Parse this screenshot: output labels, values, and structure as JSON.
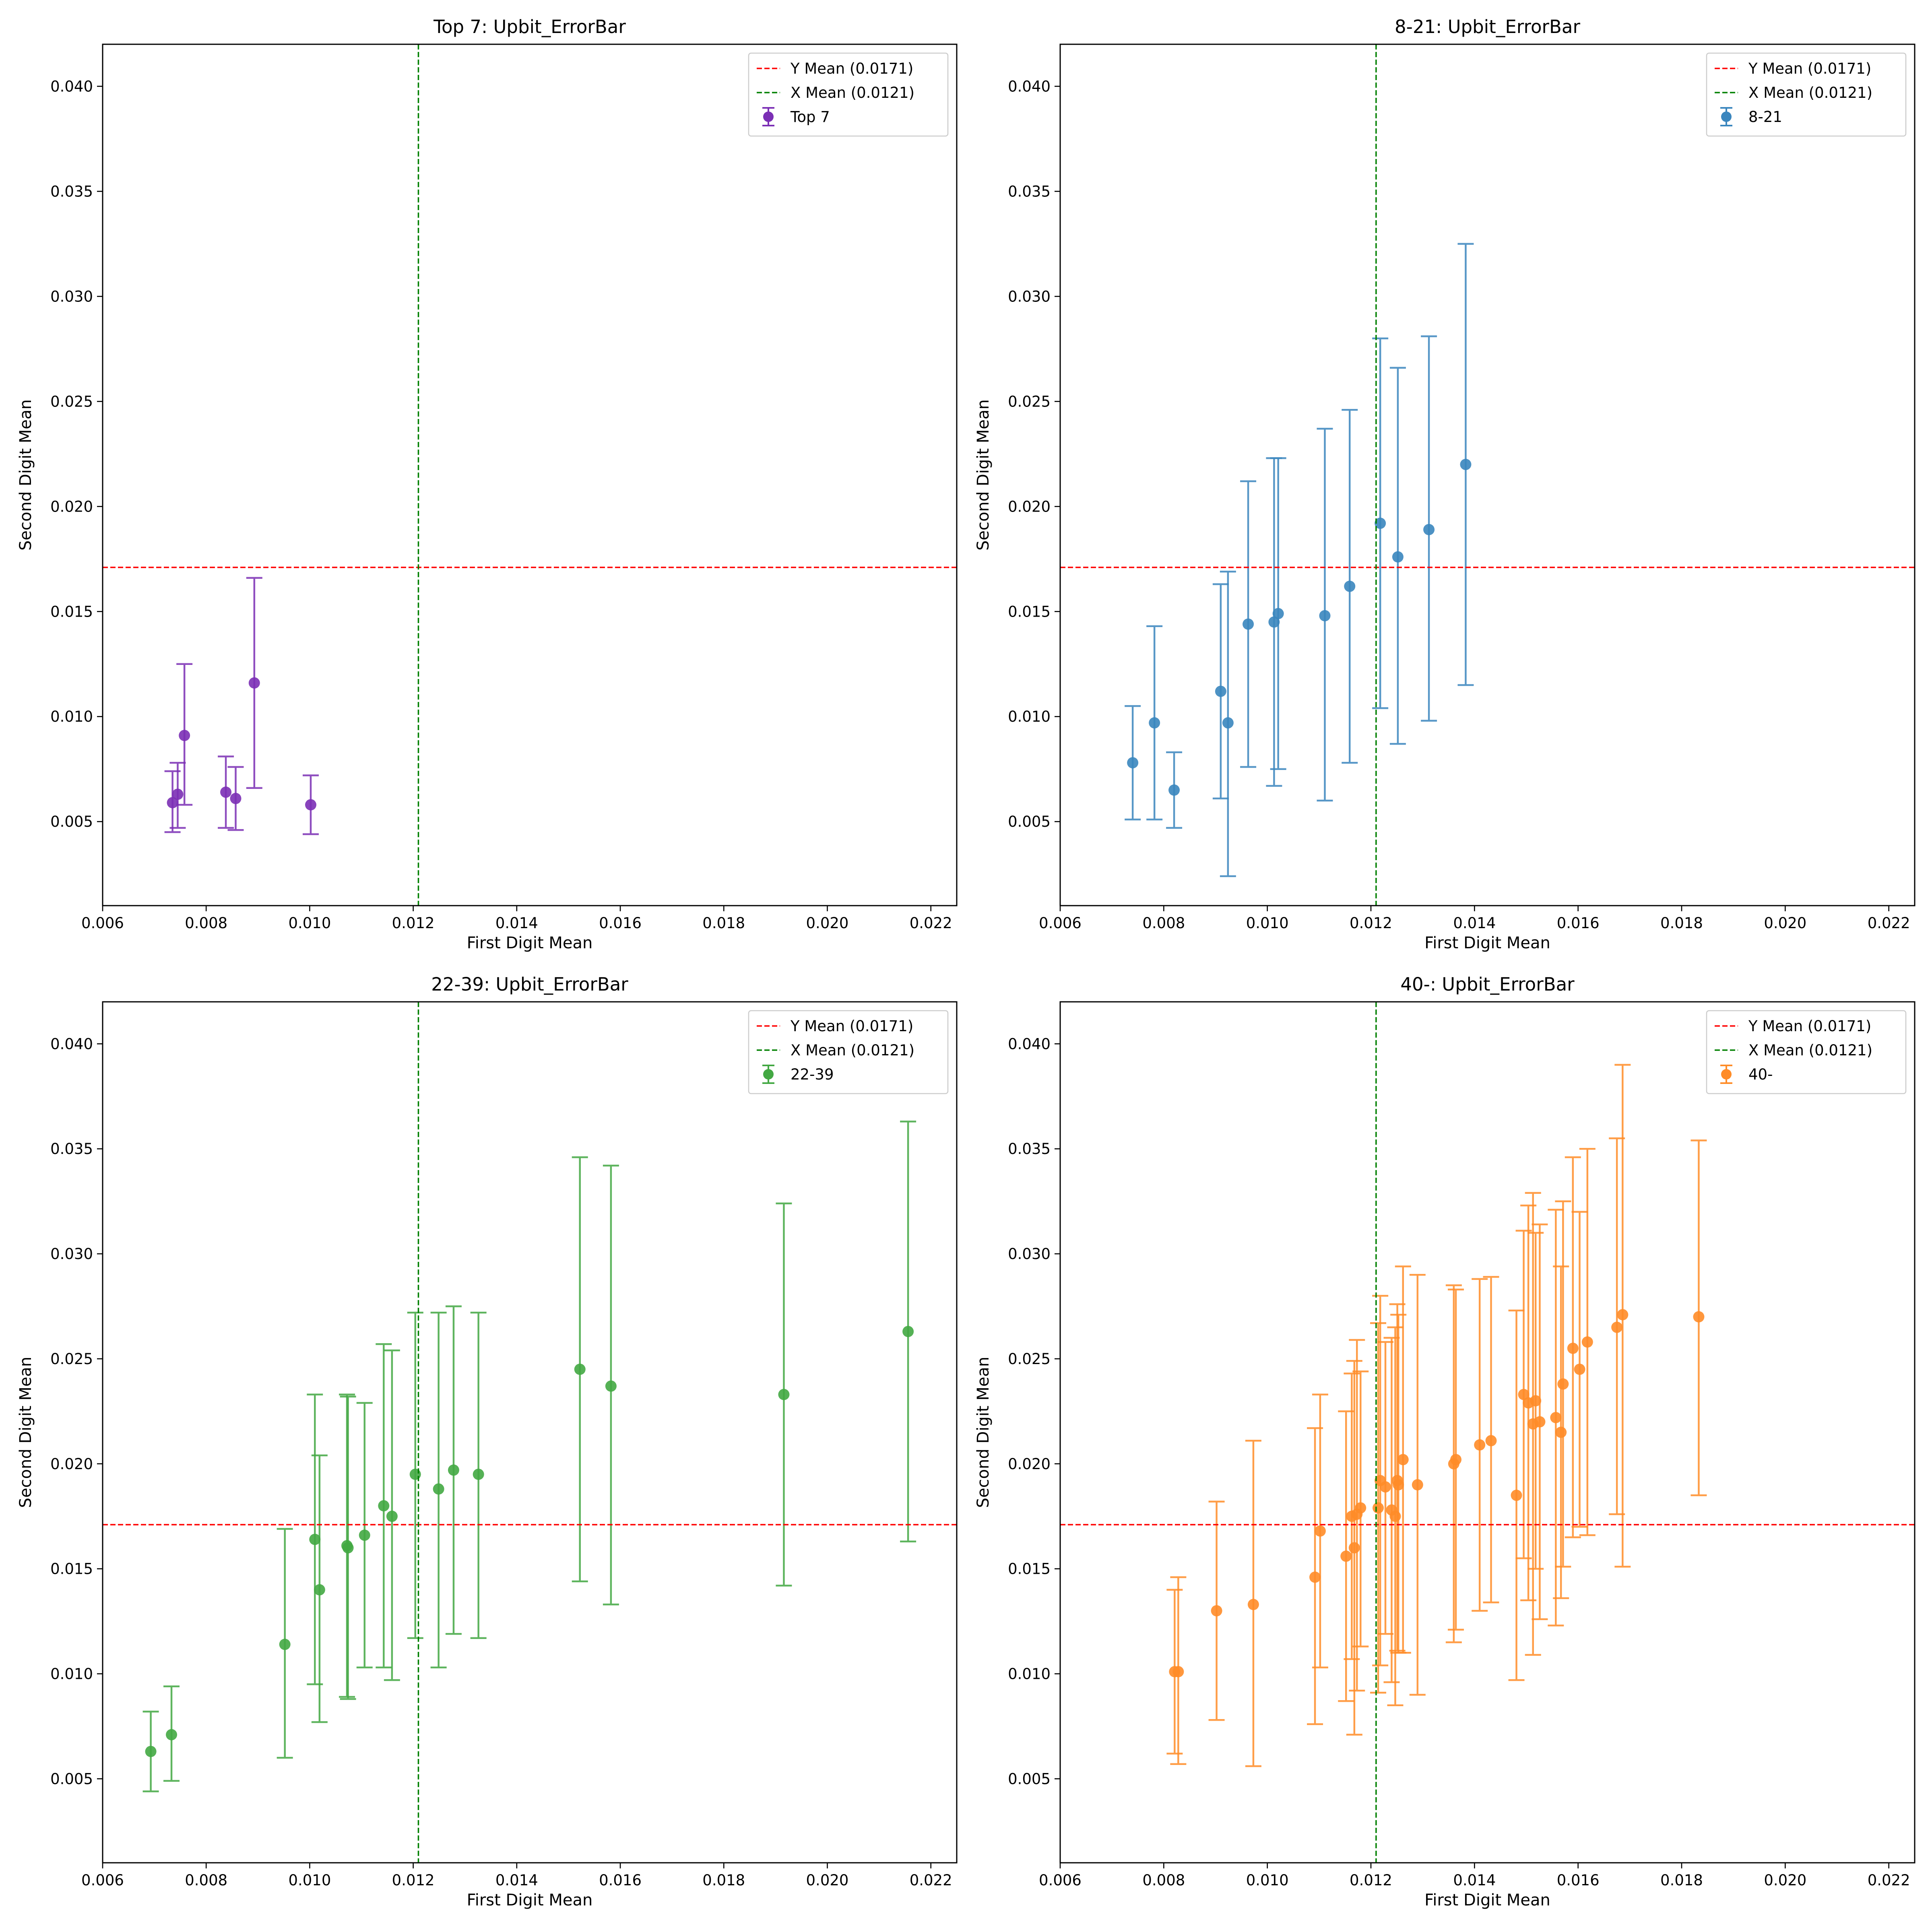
{
  "colors": {
    "y_mean_line": "#ff0000",
    "x_mean_line": "#008000",
    "panel_colors": [
      "#7B2FB5",
      "#3A86BE",
      "#43A843",
      "#FF8C28"
    ]
  },
  "chart_data": [
    {
      "type": "scatter",
      "error_bars": true,
      "title": "Top 7: Upbit_ErrorBar",
      "xlabel": "First Digit Mean",
      "ylabel": "Second Digit Mean",
      "xlim": [
        0.006,
        0.0225
      ],
      "ylim": [
        0.001,
        0.042
      ],
      "x_ticks": [
        "0.006",
        "0.008",
        "0.010",
        "0.012",
        "0.014",
        "0.016",
        "0.018",
        "0.020",
        "0.022"
      ],
      "y_ticks": [
        "0.005",
        "0.010",
        "0.015",
        "0.020",
        "0.025",
        "0.030",
        "0.035",
        "0.040"
      ],
      "legend_position": "top-right",
      "reference_lines": [
        {
          "orientation": "horizontal",
          "value": 0.0171,
          "label": "Y Mean (0.0171)",
          "color": "#ff0000",
          "style": "dashed"
        },
        {
          "orientation": "vertical",
          "value": 0.0121,
          "label": "X Mean (0.0121)",
          "color": "#008000",
          "style": "dashed"
        }
      ],
      "series": [
        {
          "name": "Top 7",
          "color": "#7B2FB5",
          "points": [
            {
              "x": 0.00735,
              "y": 0.0059,
              "low": 0.0045,
              "high": 0.0074
            },
            {
              "x": 0.00745,
              "y": 0.0063,
              "low": 0.0047,
              "high": 0.0078
            },
            {
              "x": 0.00758,
              "y": 0.0091,
              "low": 0.0058,
              "high": 0.0125
            },
            {
              "x": 0.00838,
              "y": 0.0064,
              "low": 0.0047,
              "high": 0.0081
            },
            {
              "x": 0.00857,
              "y": 0.0061,
              "low": 0.0046,
              "high": 0.0076
            },
            {
              "x": 0.00893,
              "y": 0.0116,
              "low": 0.0066,
              "high": 0.0166
            },
            {
              "x": 0.01002,
              "y": 0.0058,
              "low": 0.0044,
              "high": 0.0072
            }
          ]
        }
      ]
    },
    {
      "type": "scatter",
      "error_bars": true,
      "title": "8-21: Upbit_ErrorBar",
      "xlabel": "First Digit Mean",
      "ylabel": "Second Digit Mean",
      "xlim": [
        0.006,
        0.0225
      ],
      "ylim": [
        0.001,
        0.042
      ],
      "x_ticks": [
        "0.006",
        "0.008",
        "0.010",
        "0.012",
        "0.014",
        "0.016",
        "0.018",
        "0.020",
        "0.022"
      ],
      "y_ticks": [
        "0.005",
        "0.010",
        "0.015",
        "0.020",
        "0.025",
        "0.030",
        "0.035",
        "0.040"
      ],
      "legend_position": "top-right",
      "reference_lines": [
        {
          "orientation": "horizontal",
          "value": 0.0171,
          "label": "Y Mean (0.0171)",
          "color": "#ff0000",
          "style": "dashed"
        },
        {
          "orientation": "vertical",
          "value": 0.0121,
          "label": "X Mean (0.0121)",
          "color": "#008000",
          "style": "dashed"
        }
      ],
      "series": [
        {
          "name": "8-21",
          "color": "#3A86BE",
          "points": [
            {
              "x": 0.0074,
              "y": 0.0078,
              "low": 0.0051,
              "high": 0.0105
            },
            {
              "x": 0.00782,
              "y": 0.0097,
              "low": 0.0051,
              "high": 0.0143
            },
            {
              "x": 0.0082,
              "y": 0.0065,
              "low": 0.0047,
              "high": 0.0083
            },
            {
              "x": 0.0091,
              "y": 0.0112,
              "low": 0.0061,
              "high": 0.0163
            },
            {
              "x": 0.00924,
              "y": 0.0097,
              "low": 0.0024,
              "high": 0.0169
            },
            {
              "x": 0.00963,
              "y": 0.0144,
              "low": 0.0076,
              "high": 0.0212
            },
            {
              "x": 0.01013,
              "y": 0.0145,
              "low": 0.0067,
              "high": 0.0223
            },
            {
              "x": 0.01021,
              "y": 0.0149,
              "low": 0.0075,
              "high": 0.0223
            },
            {
              "x": 0.01111,
              "y": 0.0148,
              "low": 0.006,
              "high": 0.0237
            },
            {
              "x": 0.01159,
              "y": 0.0162,
              "low": 0.0078,
              "high": 0.0246
            },
            {
              "x": 0.01218,
              "y": 0.0192,
              "low": 0.0104,
              "high": 0.028
            },
            {
              "x": 0.01252,
              "y": 0.0176,
              "low": 0.0087,
              "high": 0.0266
            },
            {
              "x": 0.01312,
              "y": 0.0189,
              "low": 0.0098,
              "high": 0.0281
            },
            {
              "x": 0.01383,
              "y": 0.022,
              "low": 0.0115,
              "high": 0.0325
            }
          ]
        }
      ]
    },
    {
      "type": "scatter",
      "error_bars": true,
      "title": "22-39: Upbit_ErrorBar",
      "xlabel": "First Digit Mean",
      "ylabel": "Second Digit Mean",
      "xlim": [
        0.006,
        0.0225
      ],
      "ylim": [
        0.001,
        0.042
      ],
      "x_ticks": [
        "0.006",
        "0.008",
        "0.010",
        "0.012",
        "0.014",
        "0.016",
        "0.018",
        "0.020",
        "0.022"
      ],
      "y_ticks": [
        "0.005",
        "0.010",
        "0.015",
        "0.020",
        "0.025",
        "0.030",
        "0.035",
        "0.040"
      ],
      "legend_position": "top-right",
      "reference_lines": [
        {
          "orientation": "horizontal",
          "value": 0.0171,
          "label": "Y Mean (0.0171)",
          "color": "#ff0000",
          "style": "dashed"
        },
        {
          "orientation": "vertical",
          "value": 0.0121,
          "label": "X Mean (0.0121)",
          "color": "#008000",
          "style": "dashed"
        }
      ],
      "series": [
        {
          "name": "22-39",
          "color": "#43A843",
          "points": [
            {
              "x": 0.00693,
              "y": 0.0063,
              "low": 0.0044,
              "high": 0.0082
            },
            {
              "x": 0.00733,
              "y": 0.0071,
              "low": 0.0049,
              "high": 0.0094
            },
            {
              "x": 0.00952,
              "y": 0.0114,
              "low": 0.006,
              "high": 0.0169
            },
            {
              "x": 0.0101,
              "y": 0.0164,
              "low": 0.0095,
              "high": 0.0233
            },
            {
              "x": 0.01019,
              "y": 0.014,
              "low": 0.0077,
              "high": 0.0204
            },
            {
              "x": 0.01072,
              "y": 0.0161,
              "low": 0.0089,
              "high": 0.0233
            },
            {
              "x": 0.01074,
              "y": 0.016,
              "low": 0.0088,
              "high": 0.0232
            },
            {
              "x": 0.01106,
              "y": 0.0166,
              "low": 0.0103,
              "high": 0.0229
            },
            {
              "x": 0.01143,
              "y": 0.018,
              "low": 0.0103,
              "high": 0.0257
            },
            {
              "x": 0.01159,
              "y": 0.0175,
              "low": 0.0097,
              "high": 0.0254
            },
            {
              "x": 0.01204,
              "y": 0.0195,
              "low": 0.0117,
              "high": 0.0272
            },
            {
              "x": 0.01249,
              "y": 0.0188,
              "low": 0.0103,
              "high": 0.0272
            },
            {
              "x": 0.01278,
              "y": 0.0197,
              "low": 0.0119,
              "high": 0.0275
            },
            {
              "x": 0.01326,
              "y": 0.0195,
              "low": 0.0117,
              "high": 0.0272
            },
            {
              "x": 0.01522,
              "y": 0.0245,
              "low": 0.0144,
              "high": 0.0346
            },
            {
              "x": 0.01582,
              "y": 0.0237,
              "low": 0.0133,
              "high": 0.0342
            },
            {
              "x": 0.01916,
              "y": 0.0233,
              "low": 0.0142,
              "high": 0.0324
            },
            {
              "x": 0.02156,
              "y": 0.0263,
              "low": 0.0163,
              "high": 0.0363
            }
          ]
        }
      ]
    },
    {
      "type": "scatter",
      "error_bars": true,
      "title": "40-: Upbit_ErrorBar",
      "xlabel": "First Digit Mean",
      "ylabel": "Second Digit Mean",
      "xlim": [
        0.006,
        0.0225
      ],
      "ylim": [
        0.001,
        0.042
      ],
      "x_ticks": [
        "0.006",
        "0.008",
        "0.010",
        "0.012",
        "0.014",
        "0.016",
        "0.018",
        "0.020",
        "0.022"
      ],
      "y_ticks": [
        "0.005",
        "0.010",
        "0.015",
        "0.020",
        "0.025",
        "0.030",
        "0.035",
        "0.040"
      ],
      "legend_position": "top-right",
      "reference_lines": [
        {
          "orientation": "horizontal",
          "value": 0.0171,
          "label": "Y Mean (0.0171)",
          "color": "#ff0000",
          "style": "dashed"
        },
        {
          "orientation": "vertical",
          "value": 0.0121,
          "label": "X Mean (0.0121)",
          "color": "#008000",
          "style": "dashed"
        }
      ],
      "series": [
        {
          "name": "40-",
          "color": "#FF8C28",
          "points": [
            {
              "x": 0.00821,
              "y": 0.0101,
              "low": 0.0062,
              "high": 0.014
            },
            {
              "x": 0.00828,
              "y": 0.0101,
              "low": 0.0057,
              "high": 0.0146
            },
            {
              "x": 0.00902,
              "y": 0.013,
              "low": 0.0078,
              "high": 0.0182
            },
            {
              "x": 0.00973,
              "y": 0.0133,
              "low": 0.0056,
              "high": 0.0211
            },
            {
              "x": 0.01092,
              "y": 0.0146,
              "low": 0.0076,
              "high": 0.0217
            },
            {
              "x": 0.01102,
              "y": 0.0168,
              "low": 0.0103,
              "high": 0.0233
            },
            {
              "x": 0.01152,
              "y": 0.0156,
              "low": 0.0087,
              "high": 0.0225
            },
            {
              "x": 0.01163,
              "y": 0.0175,
              "low": 0.0107,
              "high": 0.0243
            },
            {
              "x": 0.01168,
              "y": 0.016,
              "low": 0.0071,
              "high": 0.0249
            },
            {
              "x": 0.01173,
              "y": 0.0176,
              "low": 0.0092,
              "high": 0.0259
            },
            {
              "x": 0.0118,
              "y": 0.0179,
              "low": 0.0113,
              "high": 0.0244
            },
            {
              "x": 0.01214,
              "y": 0.0179,
              "low": 0.0091,
              "high": 0.0267
            },
            {
              "x": 0.01218,
              "y": 0.0192,
              "low": 0.0104,
              "high": 0.028
            },
            {
              "x": 0.01228,
              "y": 0.0189,
              "low": 0.0119,
              "high": 0.0258
            },
            {
              "x": 0.0124,
              "y": 0.0178,
              "low": 0.0096,
              "high": 0.026
            },
            {
              "x": 0.01247,
              "y": 0.0175,
              "low": 0.0085,
              "high": 0.0265
            },
            {
              "x": 0.01251,
              "y": 0.0192,
              "low": 0.0111,
              "high": 0.0276
            },
            {
              "x": 0.01253,
              "y": 0.019,
              "low": 0.011,
              "high": 0.0271
            },
            {
              "x": 0.01262,
              "y": 0.0202,
              "low": 0.011,
              "high": 0.0294
            },
            {
              "x": 0.0129,
              "y": 0.019,
              "low": 0.009,
              "high": 0.029
            },
            {
              "x": 0.0136,
              "y": 0.02,
              "low": 0.0115,
              "high": 0.0285
            },
            {
              "x": 0.01364,
              "y": 0.0202,
              "low": 0.0121,
              "high": 0.0283
            },
            {
              "x": 0.0141,
              "y": 0.0209,
              "low": 0.013,
              "high": 0.0288
            },
            {
              "x": 0.01432,
              "y": 0.0211,
              "low": 0.0134,
              "high": 0.0289
            },
            {
              "x": 0.01481,
              "y": 0.0185,
              "low": 0.0097,
              "high": 0.0273
            },
            {
              "x": 0.01495,
              "y": 0.0233,
              "low": 0.0155,
              "high": 0.0311
            },
            {
              "x": 0.01504,
              "y": 0.0229,
              "low": 0.0135,
              "high": 0.0323
            },
            {
              "x": 0.01513,
              "y": 0.0219,
              "low": 0.0109,
              "high": 0.0329
            },
            {
              "x": 0.01518,
              "y": 0.023,
              "low": 0.015,
              "high": 0.031
            },
            {
              "x": 0.01526,
              "y": 0.022,
              "low": 0.0126,
              "high": 0.0314
            },
            {
              "x": 0.01557,
              "y": 0.0222,
              "low": 0.0123,
              "high": 0.0321
            },
            {
              "x": 0.01567,
              "y": 0.0215,
              "low": 0.0136,
              "high": 0.0294
            },
            {
              "x": 0.01571,
              "y": 0.0238,
              "low": 0.0151,
              "high": 0.0325
            },
            {
              "x": 0.0159,
              "y": 0.0255,
              "low": 0.0165,
              "high": 0.0346
            },
            {
              "x": 0.01603,
              "y": 0.0245,
              "low": 0.017,
              "high": 0.032
            },
            {
              "x": 0.01618,
              "y": 0.0258,
              "low": 0.0166,
              "high": 0.035
            },
            {
              "x": 0.01675,
              "y": 0.0265,
              "low": 0.0176,
              "high": 0.0355
            },
            {
              "x": 0.01686,
              "y": 0.0271,
              "low": 0.0151,
              "high": 0.039
            },
            {
              "x": 0.01833,
              "y": 0.027,
              "low": 0.0185,
              "high": 0.0354
            }
          ]
        }
      ]
    }
  ]
}
